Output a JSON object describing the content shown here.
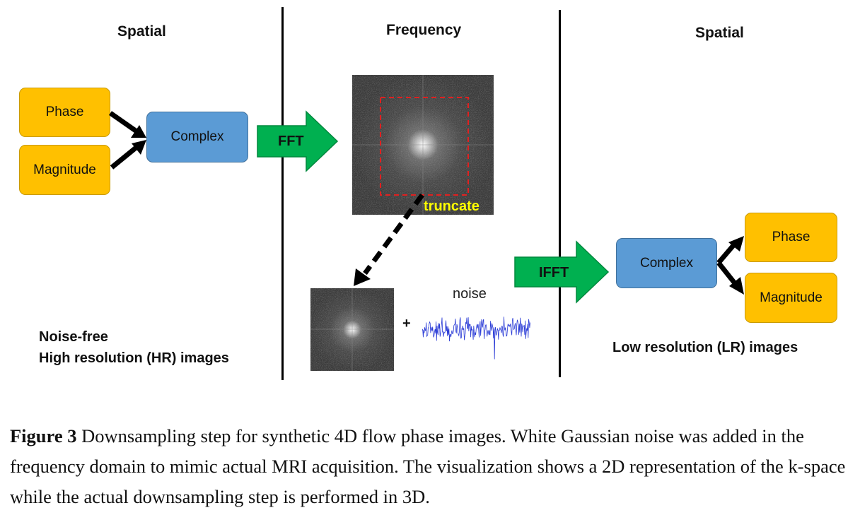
{
  "headers": {
    "left": "Spatial",
    "middle": "Frequency",
    "right": "Spatial"
  },
  "left_panel": {
    "phase": "Phase",
    "magnitude": "Magnitude",
    "complex": "Complex",
    "label_line1": "Noise-free",
    "label_line2": "High resolution (HR) images"
  },
  "middle_panel": {
    "fft": "FFT",
    "truncate": "truncate",
    "plus": "+",
    "noise": "noise"
  },
  "right_panel": {
    "ifft": "IFFT",
    "complex": "Complex",
    "phase": "Phase",
    "magnitude": "Magnitude",
    "label": "Low resolution (LR) images"
  },
  "caption": {
    "figure_label": "Figure 3",
    "text": " Downsampling step for synthetic 4D flow phase images. White Gaussian noise was added in the frequency domain to mimic actual MRI acquisition. The visualization shows a 2D representation of the k-space while the actual downsampling step is performed in 3D."
  },
  "colors": {
    "orange": "#ffc000",
    "blue": "#5b9bd5",
    "green_arrow": "#00b050",
    "truncate_box": "#e02020",
    "truncate_text": "#ffff00",
    "noise_signal": "#2a3bd6"
  }
}
